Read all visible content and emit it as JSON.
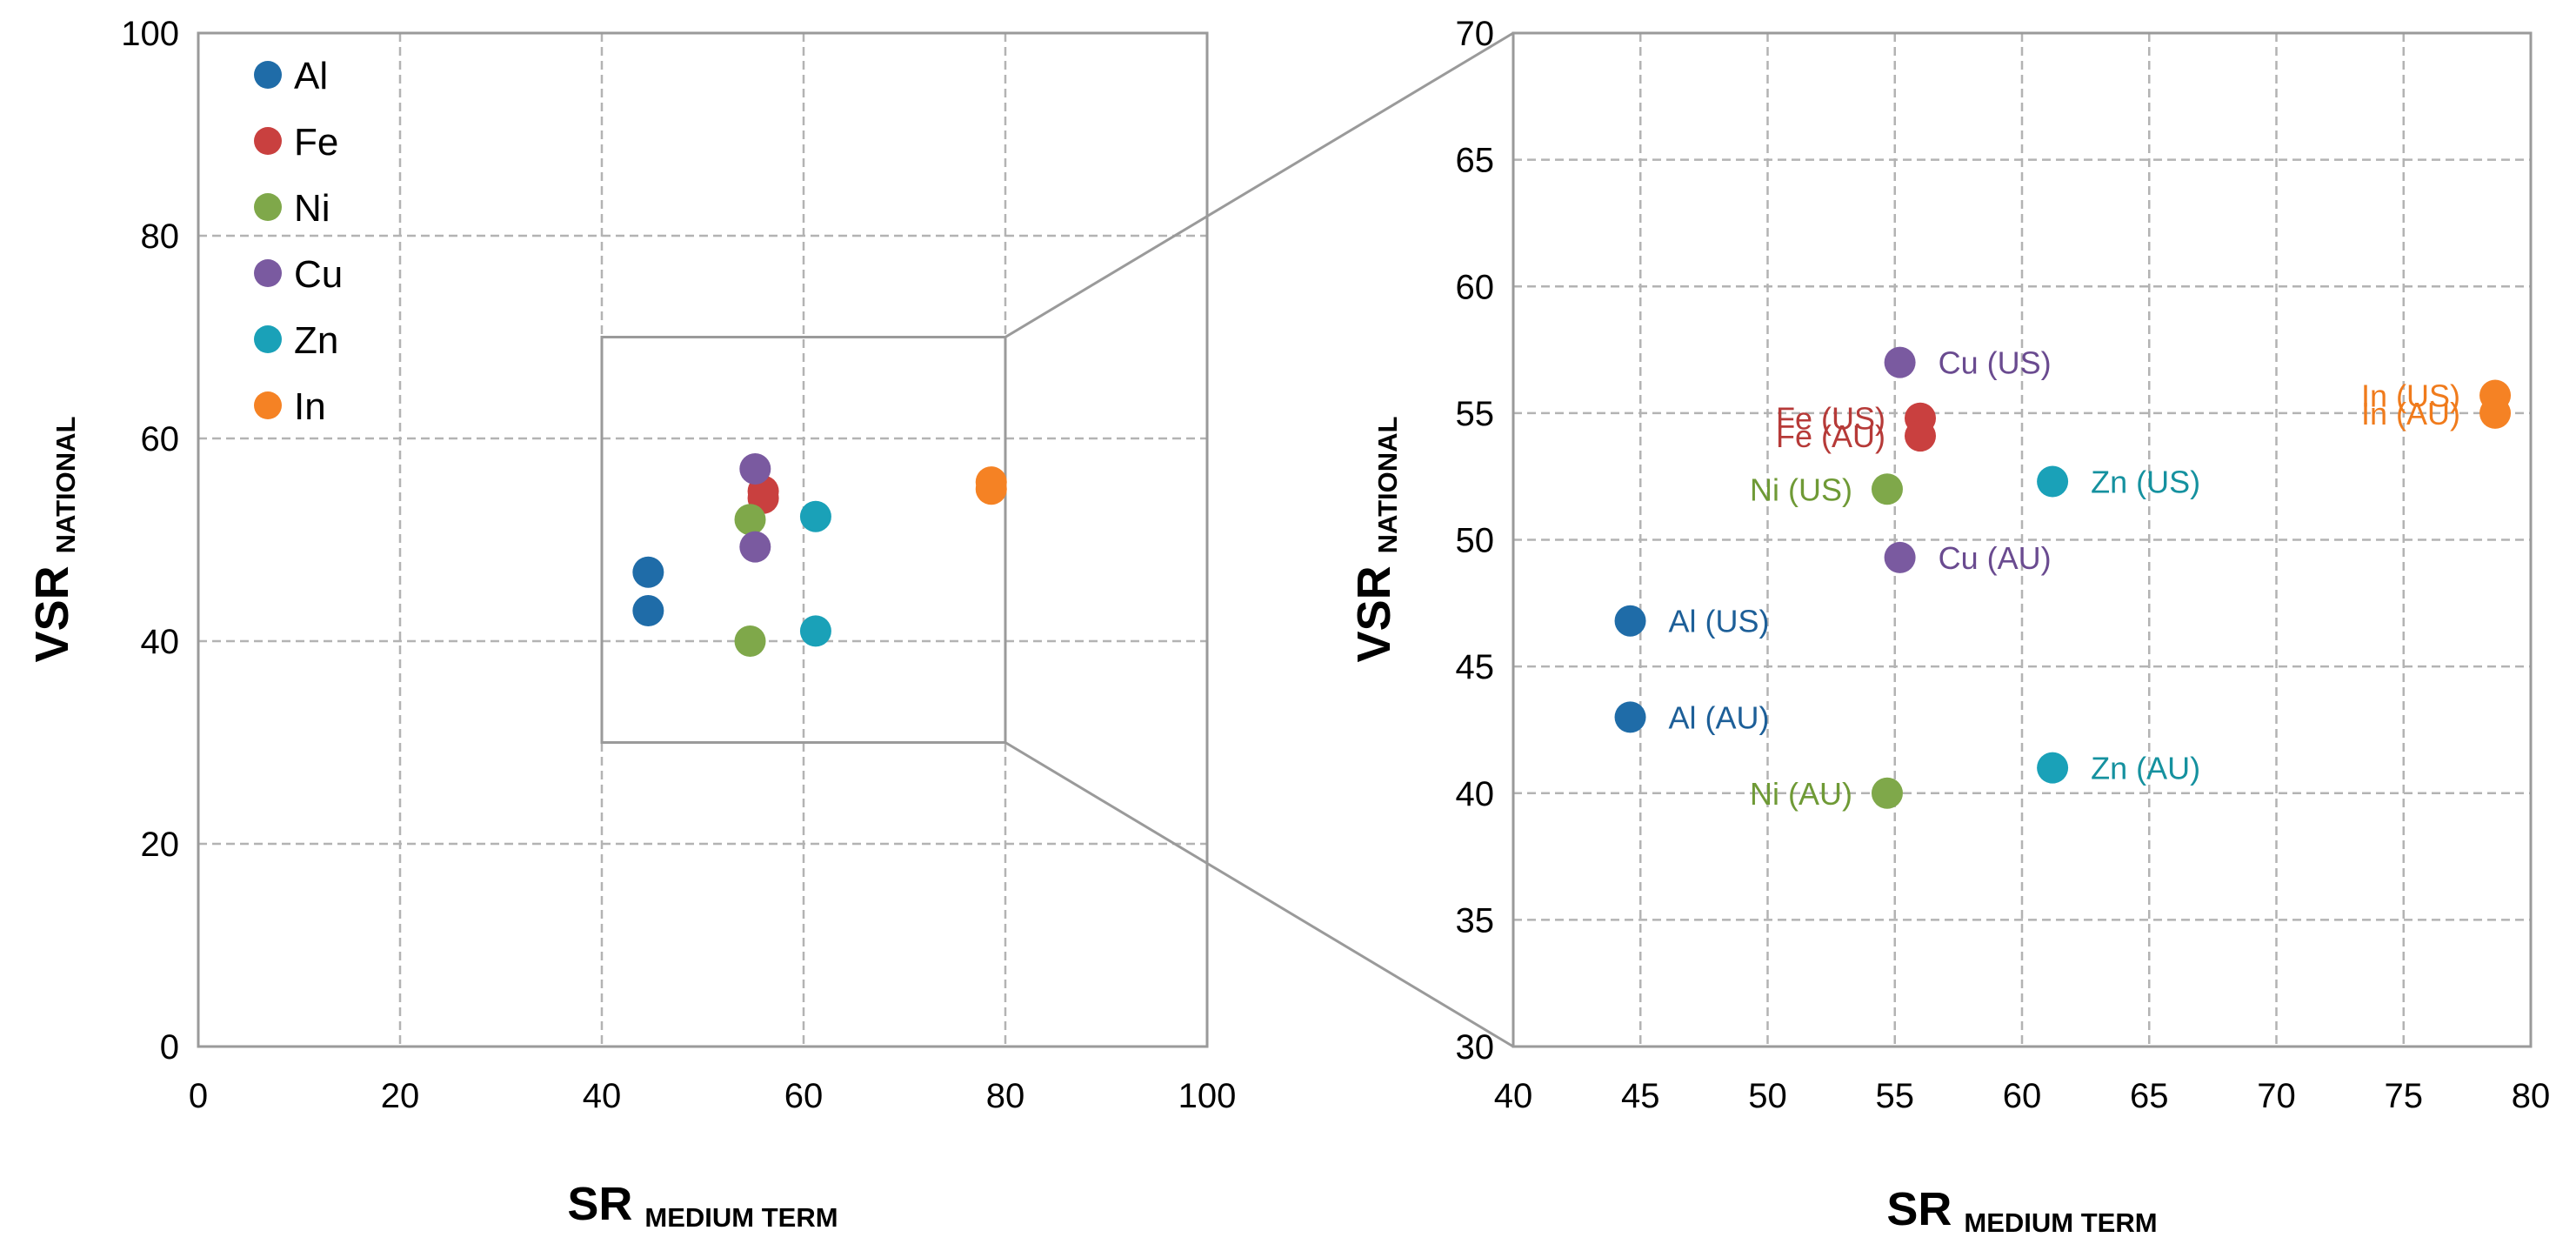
{
  "colors": {
    "Al": "#1f6ca8",
    "Fe": "#c9403f",
    "Ni": "#7fa84a",
    "Cu": "#7a5aa0",
    "Zn": "#1aa1b8",
    "In": "#f58224",
    "label_Al": "#1d5f98",
    "label_Fe": "#b63a38",
    "label_Ni": "#6f9a36",
    "label_Cu": "#6a4b90",
    "label_Zn": "#15919f",
    "label_In": "#f07b1c"
  },
  "chart_data": [
    {
      "type": "scatter",
      "panel": "overview",
      "title": "",
      "xlabel": "SR",
      "xlabel_sub": "MEDIUM TERM",
      "ylabel": "VSR",
      "ylabel_sub": "NATIONAL",
      "xlim": [
        0,
        100
      ],
      "ylim": [
        0,
        100
      ],
      "xticks": [
        0,
        20,
        40,
        60,
        80,
        100
      ],
      "yticks": [
        0,
        20,
        40,
        60,
        80,
        100
      ],
      "grid": true,
      "legend": {
        "position": "top-left",
        "entries": [
          "Al",
          "Fe",
          "Ni",
          "Cu",
          "Zn",
          "In"
        ]
      },
      "zoom_box": {
        "x": [
          40,
          80
        ],
        "y": [
          30,
          70
        ]
      },
      "series": [
        {
          "name": "Al",
          "points": [
            [
              44.6,
              46.8
            ],
            [
              44.6,
              43.0
            ]
          ]
        },
        {
          "name": "Fe",
          "points": [
            [
              56.0,
              54.8
            ],
            [
              56.0,
              54.1
            ]
          ]
        },
        {
          "name": "Ni",
          "points": [
            [
              54.7,
              52.0
            ],
            [
              54.7,
              40.0
            ]
          ]
        },
        {
          "name": "Cu",
          "points": [
            [
              55.2,
              57.0
            ],
            [
              55.2,
              49.3
            ]
          ]
        },
        {
          "name": "Zn",
          "points": [
            [
              61.2,
              52.3
            ],
            [
              61.2,
              41.0
            ]
          ]
        },
        {
          "name": "In",
          "points": [
            [
              78.6,
              55.7
            ],
            [
              78.6,
              55.0
            ]
          ]
        }
      ]
    },
    {
      "type": "scatter",
      "panel": "zoom",
      "title": "",
      "xlabel": "SR",
      "xlabel_sub": "MEDIUM TERM",
      "ylabel": "VSR",
      "ylabel_sub": "NATIONAL",
      "xlim": [
        40,
        80
      ],
      "ylim": [
        30,
        70
      ],
      "xticks": [
        40,
        45,
        50,
        55,
        60,
        65,
        70,
        75,
        80
      ],
      "yticks": [
        30,
        35,
        40,
        45,
        50,
        55,
        60,
        65,
        70
      ],
      "grid": true,
      "points": [
        {
          "series": "Al",
          "label": "Al (US)",
          "x": 44.6,
          "y": 46.8,
          "label_side": "right"
        },
        {
          "series": "Al",
          "label": "Al (AU)",
          "x": 44.6,
          "y": 43.0,
          "label_side": "right"
        },
        {
          "series": "Fe",
          "label": "Fe (US)",
          "x": 56.0,
          "y": 54.8,
          "label_side": "left"
        },
        {
          "series": "Fe",
          "label": "Fe (AU)",
          "x": 56.0,
          "y": 54.1,
          "label_side": "left"
        },
        {
          "series": "Ni",
          "label": "Ni (US)",
          "x": 54.7,
          "y": 52.0,
          "label_side": "left"
        },
        {
          "series": "Ni",
          "label": "Ni (AU)",
          "x": 54.7,
          "y": 40.0,
          "label_side": "left"
        },
        {
          "series": "Cu",
          "label": "Cu (US)",
          "x": 55.2,
          "y": 57.0,
          "label_side": "right"
        },
        {
          "series": "Cu",
          "label": "Cu (AU)",
          "x": 55.2,
          "y": 49.3,
          "label_side": "right"
        },
        {
          "series": "Zn",
          "label": "Zn (US)",
          "x": 61.2,
          "y": 52.3,
          "label_side": "right"
        },
        {
          "series": "Zn",
          "label": "Zn (AU)",
          "x": 61.2,
          "y": 41.0,
          "label_side": "right"
        },
        {
          "series": "In",
          "label": "In (US)",
          "x": 78.6,
          "y": 55.7,
          "label_side": "left"
        },
        {
          "series": "In",
          "label": "In (AU)",
          "x": 78.6,
          "y": 55.0,
          "label_side": "left"
        }
      ]
    }
  ]
}
